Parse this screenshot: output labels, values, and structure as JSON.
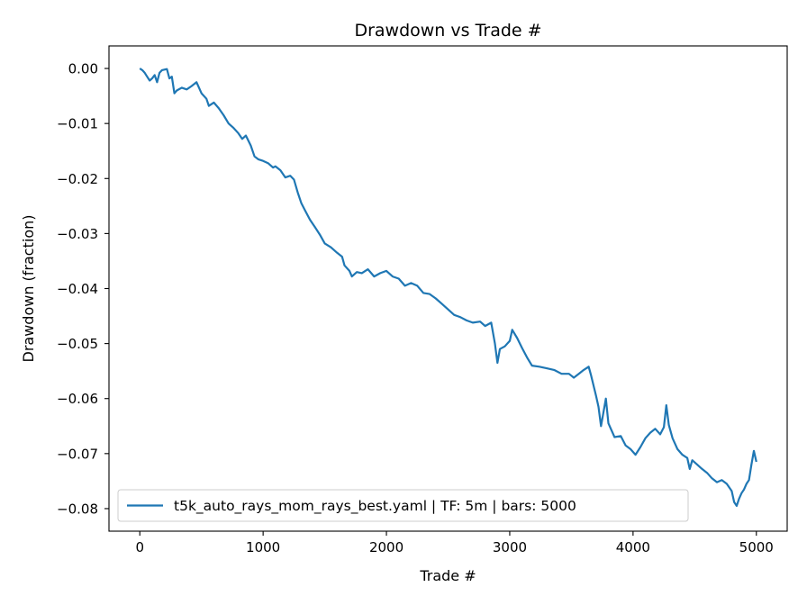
{
  "chart_data": {
    "type": "line",
    "title": "Drawdown vs Trade #",
    "xlabel": "Trade #",
    "ylabel": "Drawdown (fraction)",
    "xlim": [
      -250,
      5250
    ],
    "ylim": [
      -0.0841,
      0.0041
    ],
    "x_ticks": [
      0,
      1000,
      2000,
      3000,
      4000,
      5000
    ],
    "x_tick_labels": [
      "0",
      "1000",
      "2000",
      "3000",
      "4000",
      "5000"
    ],
    "y_ticks": [
      0.0,
      -0.01,
      -0.02,
      -0.03,
      -0.04,
      -0.05,
      -0.06,
      -0.07,
      -0.08
    ],
    "y_tick_labels": [
      "0.00",
      "−0.01",
      "−0.02",
      "−0.03",
      "−0.04",
      "−0.05",
      "−0.06",
      "−0.07",
      "−0.08"
    ],
    "grid": false,
    "legend_position": "lower-left",
    "series": [
      {
        "name": "t5k_auto_rays_mom_rays_best.yaml | TF: 5m | bars: 5000",
        "color": "#1f77b4",
        "points": [
          [
            0,
            0.0
          ],
          [
            20,
            -0.0003
          ],
          [
            40,
            -0.0008
          ],
          [
            60,
            -0.0015
          ],
          [
            80,
            -0.0022
          ],
          [
            100,
            -0.0018
          ],
          [
            120,
            -0.0012
          ],
          [
            140,
            -0.0025
          ],
          [
            160,
            -0.0008
          ],
          [
            180,
            -0.0003
          ],
          [
            200,
            -0.0002
          ],
          [
            220,
            -0.0001
          ],
          [
            240,
            -0.0018
          ],
          [
            260,
            -0.0015
          ],
          [
            280,
            -0.0045
          ],
          [
            300,
            -0.004
          ],
          [
            340,
            -0.0035
          ],
          [
            380,
            -0.0038
          ],
          [
            420,
            -0.0032
          ],
          [
            460,
            -0.0025
          ],
          [
            500,
            -0.0045
          ],
          [
            540,
            -0.0055
          ],
          [
            560,
            -0.0068
          ],
          [
            600,
            -0.0062
          ],
          [
            640,
            -0.0072
          ],
          [
            680,
            -0.0085
          ],
          [
            720,
            -0.01
          ],
          [
            760,
            -0.0108
          ],
          [
            800,
            -0.0118
          ],
          [
            830,
            -0.0128
          ],
          [
            860,
            -0.0122
          ],
          [
            900,
            -0.014
          ],
          [
            930,
            -0.016
          ],
          [
            960,
            -0.0165
          ],
          [
            1000,
            -0.0168
          ],
          [
            1040,
            -0.0172
          ],
          [
            1080,
            -0.018
          ],
          [
            1100,
            -0.0178
          ],
          [
            1140,
            -0.0185
          ],
          [
            1180,
            -0.0198
          ],
          [
            1220,
            -0.0195
          ],
          [
            1250,
            -0.0202
          ],
          [
            1280,
            -0.0225
          ],
          [
            1310,
            -0.0245
          ],
          [
            1340,
            -0.0258
          ],
          [
            1380,
            -0.0275
          ],
          [
            1420,
            -0.0288
          ],
          [
            1460,
            -0.0302
          ],
          [
            1500,
            -0.0318
          ],
          [
            1550,
            -0.0325
          ],
          [
            1600,
            -0.0335
          ],
          [
            1640,
            -0.0342
          ],
          [
            1660,
            -0.0358
          ],
          [
            1700,
            -0.0368
          ],
          [
            1720,
            -0.0378
          ],
          [
            1760,
            -0.037
          ],
          [
            1800,
            -0.0372
          ],
          [
            1850,
            -0.0365
          ],
          [
            1900,
            -0.0378
          ],
          [
            1950,
            -0.0372
          ],
          [
            2000,
            -0.0368
          ],
          [
            2050,
            -0.0378
          ],
          [
            2100,
            -0.0382
          ],
          [
            2150,
            -0.0395
          ],
          [
            2200,
            -0.039
          ],
          [
            2250,
            -0.0395
          ],
          [
            2300,
            -0.0408
          ],
          [
            2350,
            -0.041
          ],
          [
            2400,
            -0.0418
          ],
          [
            2450,
            -0.0428
          ],
          [
            2500,
            -0.0438
          ],
          [
            2550,
            -0.0448
          ],
          [
            2600,
            -0.0452
          ],
          [
            2650,
            -0.0458
          ],
          [
            2700,
            -0.0462
          ],
          [
            2760,
            -0.046
          ],
          [
            2800,
            -0.0468
          ],
          [
            2850,
            -0.0462
          ],
          [
            2880,
            -0.05
          ],
          [
            2900,
            -0.0535
          ],
          [
            2920,
            -0.051
          ],
          [
            2960,
            -0.0505
          ],
          [
            3000,
            -0.0495
          ],
          [
            3020,
            -0.0475
          ],
          [
            3060,
            -0.049
          ],
          [
            3100,
            -0.0508
          ],
          [
            3140,
            -0.0525
          ],
          [
            3180,
            -0.054
          ],
          [
            3240,
            -0.0542
          ],
          [
            3300,
            -0.0545
          ],
          [
            3360,
            -0.0548
          ],
          [
            3420,
            -0.0555
          ],
          [
            3480,
            -0.0555
          ],
          [
            3520,
            -0.0562
          ],
          [
            3560,
            -0.0555
          ],
          [
            3600,
            -0.0548
          ],
          [
            3640,
            -0.0542
          ],
          [
            3660,
            -0.0558
          ],
          [
            3700,
            -0.0595
          ],
          [
            3720,
            -0.0615
          ],
          [
            3740,
            -0.065
          ],
          [
            3760,
            -0.0625
          ],
          [
            3780,
            -0.06
          ],
          [
            3800,
            -0.0645
          ],
          [
            3850,
            -0.067
          ],
          [
            3900,
            -0.0668
          ],
          [
            3940,
            -0.0685
          ],
          [
            3980,
            -0.0692
          ],
          [
            4020,
            -0.0702
          ],
          [
            4060,
            -0.0688
          ],
          [
            4100,
            -0.0672
          ],
          [
            4140,
            -0.0662
          ],
          [
            4180,
            -0.0655
          ],
          [
            4220,
            -0.0665
          ],
          [
            4250,
            -0.0652
          ],
          [
            4270,
            -0.0612
          ],
          [
            4290,
            -0.0648
          ],
          [
            4320,
            -0.0672
          ],
          [
            4360,
            -0.0692
          ],
          [
            4400,
            -0.0702
          ],
          [
            4440,
            -0.0708
          ],
          [
            4460,
            -0.0728
          ],
          [
            4480,
            -0.0712
          ],
          [
            4520,
            -0.072
          ],
          [
            4560,
            -0.0728
          ],
          [
            4600,
            -0.0735
          ],
          [
            4640,
            -0.0745
          ],
          [
            4680,
            -0.0752
          ],
          [
            4720,
            -0.0748
          ],
          [
            4760,
            -0.0755
          ],
          [
            4800,
            -0.0768
          ],
          [
            4820,
            -0.0788
          ],
          [
            4840,
            -0.0795
          ],
          [
            4860,
            -0.0782
          ],
          [
            4880,
            -0.0772
          ],
          [
            4900,
            -0.0765
          ],
          [
            4920,
            -0.0755
          ],
          [
            4940,
            -0.0748
          ],
          [
            4960,
            -0.072
          ],
          [
            4980,
            -0.0695
          ],
          [
            5000,
            -0.0715
          ]
        ]
      }
    ]
  }
}
